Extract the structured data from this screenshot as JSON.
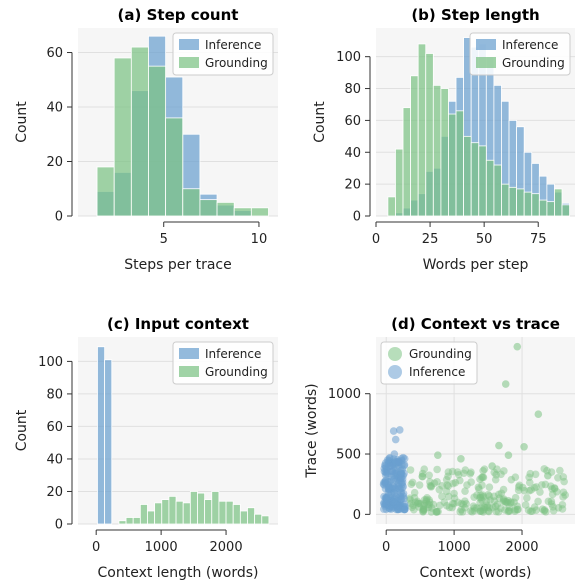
{
  "colors": {
    "inference": "#6a9fcf",
    "grounding": "#7cc283",
    "plot_bg": "#f6f6f6",
    "grid": "#e0e0e0"
  },
  "chart_data": [
    {
      "type": "bar",
      "title": "(a) Step count",
      "xlabel": "Steps per trace",
      "ylabel": "Count",
      "xlim": [
        0.5,
        11
      ],
      "ylim": [
        0,
        69
      ],
      "xticks": [
        5,
        10
      ],
      "yticks": [
        0,
        20,
        40,
        60
      ],
      "legend": "top-right",
      "bin_width": 0.9,
      "series": [
        {
          "name": "Inference",
          "x0": [
            1.5,
            2.4,
            3.3,
            4.2,
            5.1,
            6.0,
            6.9,
            7.8,
            8.7,
            9.6
          ],
          "values": [
            9,
            16,
            46,
            66,
            51,
            30,
            8,
            4,
            2,
            0
          ]
        },
        {
          "name": "Grounding",
          "x0": [
            1.5,
            2.4,
            3.3,
            4.2,
            5.1,
            6.0,
            6.9,
            7.8,
            8.7,
            9.6
          ],
          "values": [
            18,
            58,
            62,
            55,
            36,
            10,
            6,
            5,
            3,
            3
          ]
        }
      ]
    },
    {
      "type": "bar",
      "title": "(b) Step length",
      "xlabel": "Words per step",
      "ylabel": "Count",
      "xlim": [
        0,
        92
      ],
      "ylim": [
        0,
        118
      ],
      "xticks": [
        0,
        25,
        50,
        75
      ],
      "yticks": [
        0,
        20,
        40,
        60,
        80,
        100
      ],
      "legend": "top-right",
      "bin_width": 3.5,
      "series": [
        {
          "name": "Inference",
          "x0": [
            2,
            5.5,
            9,
            12.5,
            16,
            19.5,
            23,
            26.5,
            30,
            33.5,
            37,
            40.5,
            44,
            47.5,
            51,
            54.5,
            58,
            61.5,
            65,
            68.5,
            72,
            75.5,
            79,
            82.5,
            86
          ],
          "values": [
            0,
            0,
            2,
            5,
            10,
            14,
            28,
            30,
            50,
            72,
            87,
            112,
            106,
            108,
            100,
            82,
            72,
            60,
            56,
            40,
            33,
            25,
            20,
            15,
            8
          ]
        },
        {
          "name": "Grounding",
          "x0": [
            2,
            5.5,
            9,
            12.5,
            16,
            19.5,
            23,
            26.5,
            30,
            33.5,
            37,
            40.5,
            44,
            47.5,
            51,
            54.5,
            58,
            61.5,
            65,
            68.5,
            72,
            75.5,
            79,
            82.5,
            86
          ],
          "values": [
            0,
            12,
            42,
            68,
            88,
            108,
            102,
            82,
            80,
            64,
            66,
            50,
            46,
            44,
            35,
            32,
            20,
            18,
            17,
            15,
            14,
            10,
            9,
            17,
            7
          ]
        }
      ]
    },
    {
      "type": "bar",
      "title": "(c) Input context",
      "xlabel": "Context length (words)",
      "ylabel": "Count",
      "xlim": [
        -280,
        2800
      ],
      "ylim": [
        0,
        115
      ],
      "xticks": [
        0,
        1000,
        2000
      ],
      "yticks": [
        0,
        20,
        40,
        60,
        80,
        100
      ],
      "legend": "top-right",
      "bin_width": 110,
      "series": [
        {
          "name": "Inference",
          "x0": [
            20,
            130,
            240
          ],
          "values": [
            109,
            101,
            0
          ]
        },
        {
          "name": "Grounding",
          "x0": [
            350,
            460,
            570,
            680,
            790,
            900,
            1010,
            1120,
            1230,
            1340,
            1450,
            1560,
            1670,
            1780,
            1890,
            2000,
            2110,
            2220,
            2330,
            2440,
            2550
          ],
          "values": [
            2,
            4,
            4,
            12,
            8,
            13,
            15,
            17,
            14,
            13,
            20,
            19,
            15,
            20,
            14,
            14,
            12,
            8,
            10,
            6,
            5
          ]
        }
      ]
    },
    {
      "type": "scatter",
      "title": "(d) Context vs trace",
      "xlabel": "Context (words)",
      "ylabel": "Trace (words)",
      "xlim": [
        -150,
        2780
      ],
      "ylim": [
        -80,
        1470
      ],
      "xticks": [
        0,
        1000,
        2000
      ],
      "yticks": [
        0,
        500,
        1000
      ],
      "legend": "top-left",
      "series": [
        {
          "name": "Grounding",
          "points": [
            [
              760,
              490
            ],
            [
              1100,
              460
            ],
            [
              1660,
              570
            ],
            [
              1800,
              490
            ],
            [
              1930,
              1390
            ],
            [
              1760,
              1080
            ],
            [
              2240,
              830
            ],
            [
              2030,
              560
            ],
            [
              2380,
              320
            ],
            [
              1560,
              400
            ]
          ]
        },
        {
          "name": "Inference",
          "points": [
            [
              110,
              690
            ],
            [
              200,
              700
            ],
            [
              140,
              620
            ],
            [
              60,
              400
            ],
            [
              250,
              470
            ],
            [
              180,
              440
            ],
            [
              120,
              500
            ],
            [
              90,
              360
            ],
            [
              220,
              300
            ]
          ]
        }
      ]
    }
  ]
}
